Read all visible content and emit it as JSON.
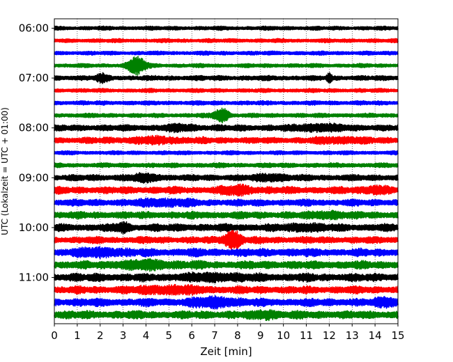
{
  "chart_data": {
    "type": "line",
    "title": "",
    "xlabel": "Zeit  [min]",
    "ylabel": "UTC (Lokalzeit = UTC + 01:00)",
    "xlim": [
      0,
      15
    ],
    "x_ticks": [
      "0",
      "1",
      "2",
      "3",
      "4",
      "5",
      "6",
      "7",
      "8",
      "9",
      "10",
      "11",
      "12",
      "13",
      "14",
      "15"
    ],
    "y_ticks": [
      {
        "label": "06:00",
        "trace_index": 0
      },
      {
        "label": "07:00",
        "trace_index": 4
      },
      {
        "label": "08:00",
        "trace_index": 8
      },
      {
        "label": "09:00",
        "trace_index": 12
      },
      {
        "label": "10:00",
        "trace_index": 16
      },
      {
        "label": "11:00",
        "trace_index": 20
      }
    ],
    "grid": "vertical dotted at each minute",
    "color_cycle": [
      "#000000",
      "#ff0000",
      "#0000ff",
      "#008000"
    ],
    "series": [
      {
        "name": "06:00",
        "color": "#000000",
        "amplitude": 0.22,
        "bursts": []
      },
      {
        "name": "06:15",
        "color": "#ff0000",
        "amplitude": 0.22,
        "bursts": []
      },
      {
        "name": "06:30",
        "color": "#0000ff",
        "amplitude": 0.22,
        "bursts": []
      },
      {
        "name": "06:45",
        "color": "#008000",
        "amplitude": 0.22,
        "bursts": [
          {
            "t": 3.6,
            "w": 0.55,
            "a": 0.75
          }
        ]
      },
      {
        "name": "07:00",
        "color": "#000000",
        "amplitude": 0.28,
        "bursts": [
          {
            "t": 2.1,
            "w": 0.4,
            "a": 0.25
          },
          {
            "t": 12.0,
            "w": 0.15,
            "a": 0.35
          }
        ]
      },
      {
        "name": "07:15",
        "color": "#ff0000",
        "amplitude": 0.22,
        "bursts": []
      },
      {
        "name": "07:30",
        "color": "#0000ff",
        "amplitude": 0.24,
        "bursts": []
      },
      {
        "name": "07:45",
        "color": "#008000",
        "amplitude": 0.24,
        "bursts": [
          {
            "t": 7.3,
            "w": 0.45,
            "a": 0.6
          }
        ]
      },
      {
        "name": "08:00",
        "color": "#000000",
        "amplitude": 0.35,
        "bursts": [
          {
            "t": 5.5,
            "w": 1.0,
            "a": 0.15
          },
          {
            "t": 11.5,
            "w": 1.5,
            "a": 0.2
          }
        ]
      },
      {
        "name": "08:15",
        "color": "#ff0000",
        "amplitude": 0.35,
        "bursts": [
          {
            "t": 4.5,
            "w": 2.0,
            "a": 0.15
          },
          {
            "t": 12.5,
            "w": 1.5,
            "a": 0.15
          }
        ]
      },
      {
        "name": "08:30",
        "color": "#0000ff",
        "amplitude": 0.22,
        "bursts": []
      },
      {
        "name": "08:45",
        "color": "#008000",
        "amplitude": 0.26,
        "bursts": []
      },
      {
        "name": "09:00",
        "color": "#000000",
        "amplitude": 0.35,
        "bursts": [
          {
            "t": 4.0,
            "w": 1.0,
            "a": 0.2
          },
          {
            "t": 9.5,
            "w": 1.0,
            "a": 0.2
          }
        ]
      },
      {
        "name": "09:15",
        "color": "#ff0000",
        "amplitude": 0.4,
        "bursts": [
          {
            "t": 8.0,
            "w": 1.0,
            "a": 0.25
          },
          {
            "t": 14.0,
            "w": 0.8,
            "a": 0.2
          }
        ]
      },
      {
        "name": "09:30",
        "color": "#0000ff",
        "amplitude": 0.38,
        "bursts": [
          {
            "t": 4.8,
            "w": 1.5,
            "a": 0.2
          }
        ]
      },
      {
        "name": "09:45",
        "color": "#008000",
        "amplitude": 0.4,
        "bursts": [
          {
            "t": 12.0,
            "w": 1.0,
            "a": 0.2
          }
        ]
      },
      {
        "name": "10:00",
        "color": "#000000",
        "amplitude": 0.42,
        "bursts": [
          {
            "t": 3.0,
            "w": 0.4,
            "a": 0.3
          },
          {
            "t": 11.0,
            "w": 1.0,
            "a": 0.2
          }
        ]
      },
      {
        "name": "10:15",
        "color": "#ff0000",
        "amplitude": 0.38,
        "bursts": [
          {
            "t": 7.8,
            "w": 0.55,
            "a": 0.75
          }
        ]
      },
      {
        "name": "10:30",
        "color": "#0000ff",
        "amplitude": 0.45,
        "bursts": [
          {
            "t": 2.0,
            "w": 1.5,
            "a": 0.2
          }
        ]
      },
      {
        "name": "10:45",
        "color": "#008000",
        "amplitude": 0.45,
        "bursts": [
          {
            "t": 4.0,
            "w": 2.0,
            "a": 0.2
          }
        ]
      },
      {
        "name": "11:00",
        "color": "#000000",
        "amplitude": 0.45,
        "bursts": [
          {
            "t": 7.0,
            "w": 2.0,
            "a": 0.15
          }
        ]
      },
      {
        "name": "11:15",
        "color": "#ff0000",
        "amplitude": 0.42,
        "bursts": [
          {
            "t": 5.0,
            "w": 2.0,
            "a": 0.2
          }
        ]
      },
      {
        "name": "11:30",
        "color": "#0000ff",
        "amplitude": 0.45,
        "bursts": [
          {
            "t": 7.0,
            "w": 1.5,
            "a": 0.25
          },
          {
            "t": 14.5,
            "w": 0.6,
            "a": 0.25
          }
        ]
      },
      {
        "name": "11:45",
        "color": "#008000",
        "amplitude": 0.45,
        "bursts": [
          {
            "t": 9.3,
            "w": 0.6,
            "a": 0.25
          }
        ]
      }
    ]
  }
}
